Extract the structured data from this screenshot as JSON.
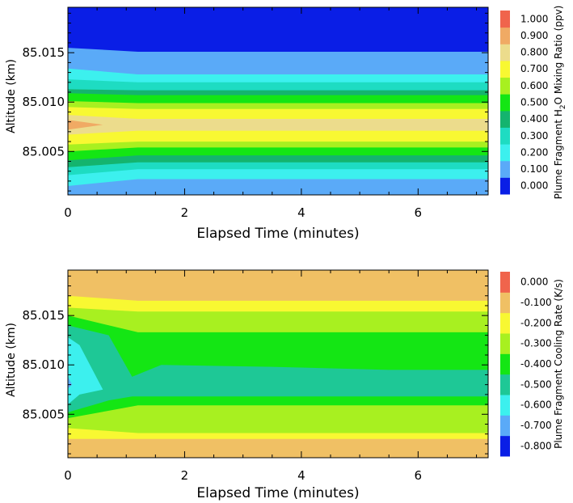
{
  "chart_data": [
    {
      "type": "heatmap",
      "subtype": "filled-contour",
      "title": "",
      "xlabel": "Elapsed Time (minutes)",
      "ylabel": "Altitude (km)",
      "xlim": [
        0,
        7.2
      ],
      "ylim": [
        85.0006,
        85.0196
      ],
      "x_ticks": [
        0,
        2,
        4,
        6
      ],
      "x_tick_labels": [
        "0",
        "2",
        "4",
        "6"
      ],
      "y_ticks": [
        85.005,
        85.01,
        85.015
      ],
      "y_tick_labels": [
        "85.005",
        "85.010",
        "85.015"
      ],
      "colorbar": {
        "title_parts": [
          "Plume Fragment H",
          "2",
          "O Mixing Ratio (ppv)"
        ],
        "levels": [
          0.0,
          0.1,
          0.2,
          0.3,
          0.4,
          0.5,
          0.6,
          0.7,
          0.8,
          0.9,
          1.0
        ],
        "labels": [
          "0.000",
          "0.100",
          "0.200",
          "0.300",
          "0.400",
          "0.500",
          "0.600",
          "0.700",
          "0.800",
          "0.900",
          "1.000"
        ],
        "colors": [
          "#0a1ee6",
          "#5aaaf8",
          "#3cf0ee",
          "#1edcc2",
          "#14b46e",
          "#14e614",
          "#a8f020",
          "#f8f832",
          "#ecdc8c",
          "#f0aa64",
          "#f0644c"
        ]
      },
      "fill_band_bottom": 0,
      "layers": [
        {
          "name": "ratio-ge-0.1",
          "level": 0.1,
          "color_index": 1,
          "x": [
            0,
            1.2,
            7.2
          ],
          "low": [
            85.0006,
            85.0006,
            85.0006
          ],
          "high": [
            85.0155,
            85.0151,
            85.0151
          ]
        },
        {
          "name": "ratio-ge-0.2",
          "level": 0.2,
          "color_index": 2,
          "x": [
            0,
            1.2,
            7.2
          ],
          "low": [
            85.0015,
            85.0022,
            85.0022
          ],
          "high": [
            85.0134,
            85.0128,
            85.0128
          ]
        },
        {
          "name": "ratio-ge-0.3",
          "level": 0.3,
          "color_index": 3,
          "x": [
            0,
            1.2,
            7.2
          ],
          "low": [
            85.0026,
            85.0032,
            85.0032
          ],
          "high": [
            85.0123,
            85.012,
            85.012
          ]
        },
        {
          "name": "ratio-ge-0.4",
          "level": 0.4,
          "color_index": 4,
          "x": [
            0,
            1.2,
            7.2
          ],
          "low": [
            85.0034,
            85.0039,
            85.0039
          ],
          "high": [
            85.0113,
            85.0112,
            85.0112
          ]
        },
        {
          "name": "ratio-ge-0.5",
          "level": 0.5,
          "color_index": 5,
          "x": [
            0,
            1.2,
            7.2
          ],
          "low": [
            85.0041,
            85.0046,
            85.0046
          ],
          "high": [
            85.0109,
            85.0107,
            85.0107
          ]
        },
        {
          "name": "ratio-ge-0.6",
          "level": 0.6,
          "color_index": 6,
          "x": [
            0,
            1.2,
            7.2
          ],
          "low": [
            85.005,
            85.0054,
            85.0054
          ],
          "high": [
            85.0101,
            85.0099,
            85.0099
          ]
        },
        {
          "name": "ratio-ge-0.7",
          "level": 0.7,
          "color_index": 7,
          "x": [
            0,
            1.2,
            7.2
          ],
          "low": [
            85.0057,
            85.006,
            85.006
          ],
          "high": [
            85.0095,
            85.0093,
            85.0093
          ]
        },
        {
          "name": "ratio-ge-0.8",
          "level": 0.8,
          "color_index": 8,
          "x": [
            0,
            1.2,
            7.2
          ],
          "low": [
            85.0067,
            85.0071,
            85.0071
          ],
          "high": [
            85.0087,
            85.0083,
            85.0083
          ]
        },
        {
          "name": "ratio-ge-0.9",
          "level": 0.9,
          "color_index": 9,
          "x": [
            0,
            0.6
          ],
          "low": [
            85.0072,
            85.0077
          ],
          "high": [
            85.0082,
            85.0077
          ]
        }
      ]
    },
    {
      "type": "heatmap",
      "subtype": "filled-contour",
      "title": "",
      "xlabel": "Elapsed Time (minutes)",
      "ylabel": "Altitude (km)",
      "xlim": [
        0,
        7.2
      ],
      "ylim": [
        85.0006,
        85.0196
      ],
      "x_ticks": [
        0,
        2,
        4,
        6
      ],
      "x_tick_labels": [
        "0",
        "2",
        "4",
        "6"
      ],
      "y_ticks": [
        85.005,
        85.01,
        85.015
      ],
      "y_tick_labels": [
        "85.005",
        "85.010",
        "85.015"
      ],
      "colorbar": {
        "title_parts": [
          "Plume Fragment Cooling Rate (K/s)"
        ],
        "levels": [
          -0.8,
          -0.7,
          -0.6,
          -0.5,
          -0.4,
          -0.3,
          -0.2,
          -0.1,
          0.0
        ],
        "labels": [
          "-0.800",
          "-0.700",
          "-0.600",
          "-0.500",
          "-0.400",
          "-0.300",
          "-0.200",
          "-0.100",
          "0.000"
        ],
        "colors": [
          "#0a1ee6",
          "#5aaaf8",
          "#3cf0ee",
          "#1ec896",
          "#14e614",
          "#a8f020",
          "#f8f832",
          "#f0c064",
          "#f0644c"
        ]
      },
      "fill_band_bottom": 7,
      "layers": [
        {
          "name": "rate-le-minus-0.1",
          "level": -0.1,
          "color_index": 6,
          "x": [
            0,
            1.2,
            7.2
          ],
          "low": [
            85.0025,
            85.0025,
            85.0025
          ],
          "high": [
            85.017,
            85.0165,
            85.0165
          ]
        },
        {
          "name": "rate-le-minus-0.2",
          "level": -0.2,
          "color_index": 5,
          "x": [
            0,
            1.2,
            7.2
          ],
          "low": [
            85.0036,
            85.0031,
            85.0031
          ],
          "high": [
            85.0158,
            85.0154,
            85.0154
          ]
        },
        {
          "name": "rate-le-minus-0.3",
          "level": -0.3,
          "color_index": 4,
          "x": [
            0,
            1.2,
            7.2
          ],
          "low": [
            85.0046,
            85.0059,
            85.0059
          ],
          "high": [
            85.015,
            85.0133,
            85.0133
          ]
        },
        {
          "name": "rate-le-minus-0.4",
          "level": -0.4,
          "color_index": 3,
          "x": [
            0,
            0.7,
            1.1,
            1.6,
            3.5,
            5.5,
            7.2
          ],
          "low": [
            85.0052,
            85.0064,
            85.0068,
            85.0068,
            85.0068,
            85.0068,
            85.0068
          ],
          "high": [
            85.014,
            85.013,
            85.0088,
            85.01,
            85.0098,
            85.0095,
            85.0095
          ]
        },
        {
          "name": "rate-le-minus-0.5",
          "level": -0.5,
          "color_index": 2,
          "x": [
            0,
            0.2,
            0.6
          ],
          "low": [
            85.006,
            85.007,
            85.0075
          ],
          "high": [
            85.0128,
            85.012,
            85.0075
          ]
        },
        {
          "name": "rate-le-minus-0.6",
          "level": -0.6,
          "color_index": 1,
          "x": [
            0,
            0.07
          ],
          "low": [
            85.0076,
            85.008
          ],
          "high": [
            85.0088,
            85.008
          ]
        }
      ]
    }
  ]
}
